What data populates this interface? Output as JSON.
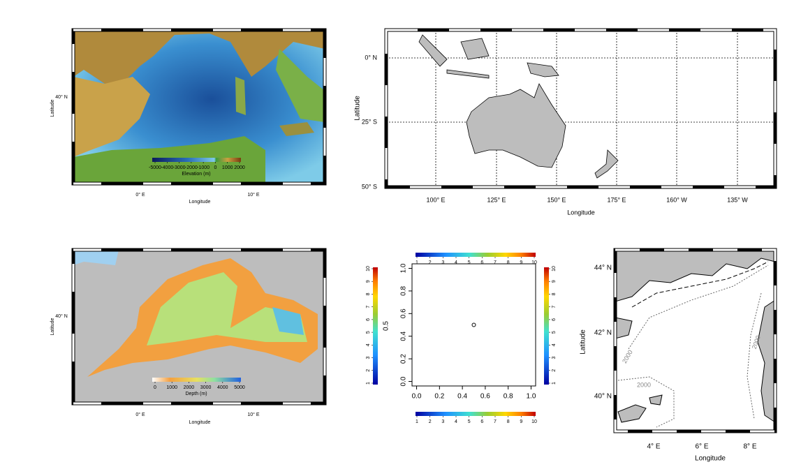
{
  "maps": [
    {
      "ylabel": "Latitude",
      "xlabel": "Longitude",
      "yticks": [
        "40° N"
      ],
      "xticks": [
        "0° E",
        "10° E"
      ],
      "legend": {
        "title": "Elevation (m)",
        "lim": [
          -5000,
          2000
        ],
        "ticks": [
          -5000,
          -4000,
          -3000,
          -2000,
          -1000,
          0,
          1000,
          2000
        ]
      }
    },
    {
      "ylabel": "Latitude",
      "xlabel": "Longitude",
      "yticks": [
        "0° N",
        "25° S",
        "50° S"
      ],
      "xticks": [
        "100° E",
        "125° E",
        "150° E",
        "175° E",
        "160° W",
        "135° W"
      ]
    },
    {
      "ylabel": "Latitude",
      "xlabel": "Longitude",
      "yticks": [
        "40° N"
      ],
      "xticks": [
        "0° E",
        "10° E"
      ],
      "legend": {
        "title": "Depth (m)",
        "lim": [
          0,
          5000
        ],
        "ticks": [
          0,
          1000,
          2000,
          3000,
          4000,
          5000
        ]
      }
    },
    {
      "ylabel": "Latitude",
      "xlabel": "Longitude",
      "yticks": [
        "44° N",
        "42° N",
        "40° N"
      ],
      "xticks": [
        "4° E",
        "6° E",
        "8° E"
      ],
      "contour_labels": [
        "2000",
        "2000",
        "2000"
      ]
    }
  ],
  "chart_data": {
    "type": "scatter",
    "x": [
      0.5
    ],
    "y": [
      0.5
    ],
    "xlim": [
      -0.04,
      1.04
    ],
    "ylim": [
      -0.04,
      1.04
    ],
    "xticks": [
      {
        "value": 0,
        "label": "0.0"
      },
      {
        "value": 0.2,
        "label": "0.2"
      },
      {
        "value": 0.4,
        "label": "0.4"
      },
      {
        "value": 0.6,
        "label": "0.6"
      },
      {
        "value": 0.8,
        "label": "0.8"
      },
      {
        "value": 1,
        "label": "1.0"
      }
    ],
    "yticks": [
      {
        "value": 0,
        "label": "0.0"
      },
      {
        "value": 0.2,
        "label": "0.2"
      },
      {
        "value": 0.4,
        "label": "0.4"
      },
      {
        "value": 0.6,
        "label": "0.6"
      },
      {
        "value": 0.8,
        "label": "0.8"
      },
      {
        "value": 1,
        "label": "1.0"
      }
    ]
  },
  "colorbars": [
    {
      "side": "top",
      "lim": [
        1,
        10
      ],
      "ticks": [
        1,
        2,
        3,
        4,
        5,
        6,
        7,
        8,
        9,
        10
      ]
    },
    {
      "side": "bottom",
      "lim": [
        1,
        10
      ],
      "ticks": [
        1,
        2,
        3,
        4,
        5,
        6,
        7,
        8,
        9,
        10
      ]
    },
    {
      "side": "left",
      "title": "0.5",
      "lim": [
        1,
        10
      ],
      "ticks": [
        1,
        2,
        3,
        4,
        5,
        6,
        7,
        8,
        9,
        10
      ]
    },
    {
      "side": "right",
      "lim": [
        1,
        10
      ],
      "ticks": [
        1,
        2,
        3,
        4,
        5,
        6,
        7,
        8,
        9,
        10
      ]
    }
  ]
}
